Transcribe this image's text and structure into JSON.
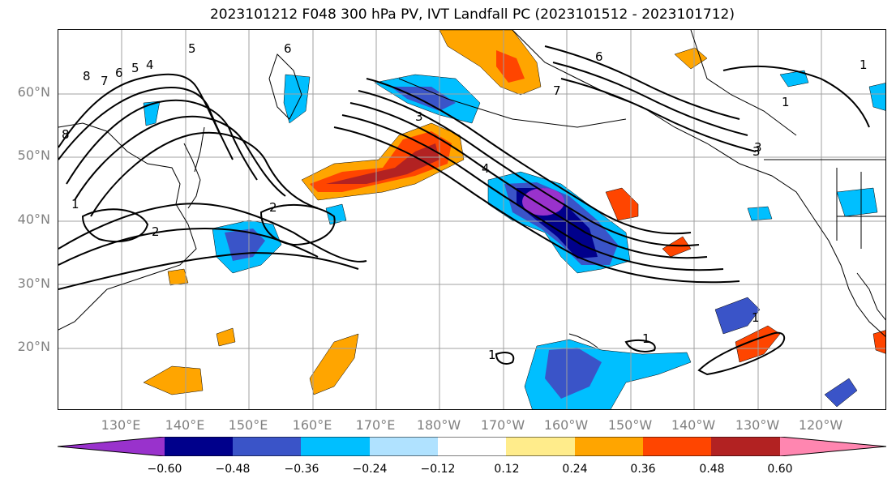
{
  "title": "2023101212 F048 300 hPa PV, IVT Landfall PC (2023101512 - 2023101712)",
  "lat_labels": [
    "60°N",
    "50°N",
    "40°N",
    "30°N",
    "20°N"
  ],
  "lon_labels": [
    "130°E",
    "140°E",
    "150°E",
    "160°E",
    "170°E",
    "180°W",
    "170°W",
    "160°W",
    "150°W",
    "140°W",
    "130°W",
    "120°W"
  ],
  "contour_labels": [
    "8",
    "7",
    "6",
    "5",
    "4",
    "5",
    "6",
    "6",
    "7",
    "3",
    "1",
    "1",
    "3",
    "4",
    "2",
    "1",
    "2",
    "1",
    "1",
    "1",
    "3",
    "8"
  ],
  "colorbar": {
    "colors": [
      "#9932cc",
      "#00008b",
      "#3a54c8",
      "#00bfff",
      "#b0e2ff",
      "#ffffff",
      "#ffec8b",
      "#ffa500",
      "#ff4500",
      "#b22222",
      "#ff86b0"
    ],
    "tick_labels": [
      "-0.60",
      "-0.48",
      "-0.36",
      "-0.24",
      "-0.12",
      "0.12",
      "0.24",
      "0.36",
      "0.48",
      "0.60"
    ]
  }
}
